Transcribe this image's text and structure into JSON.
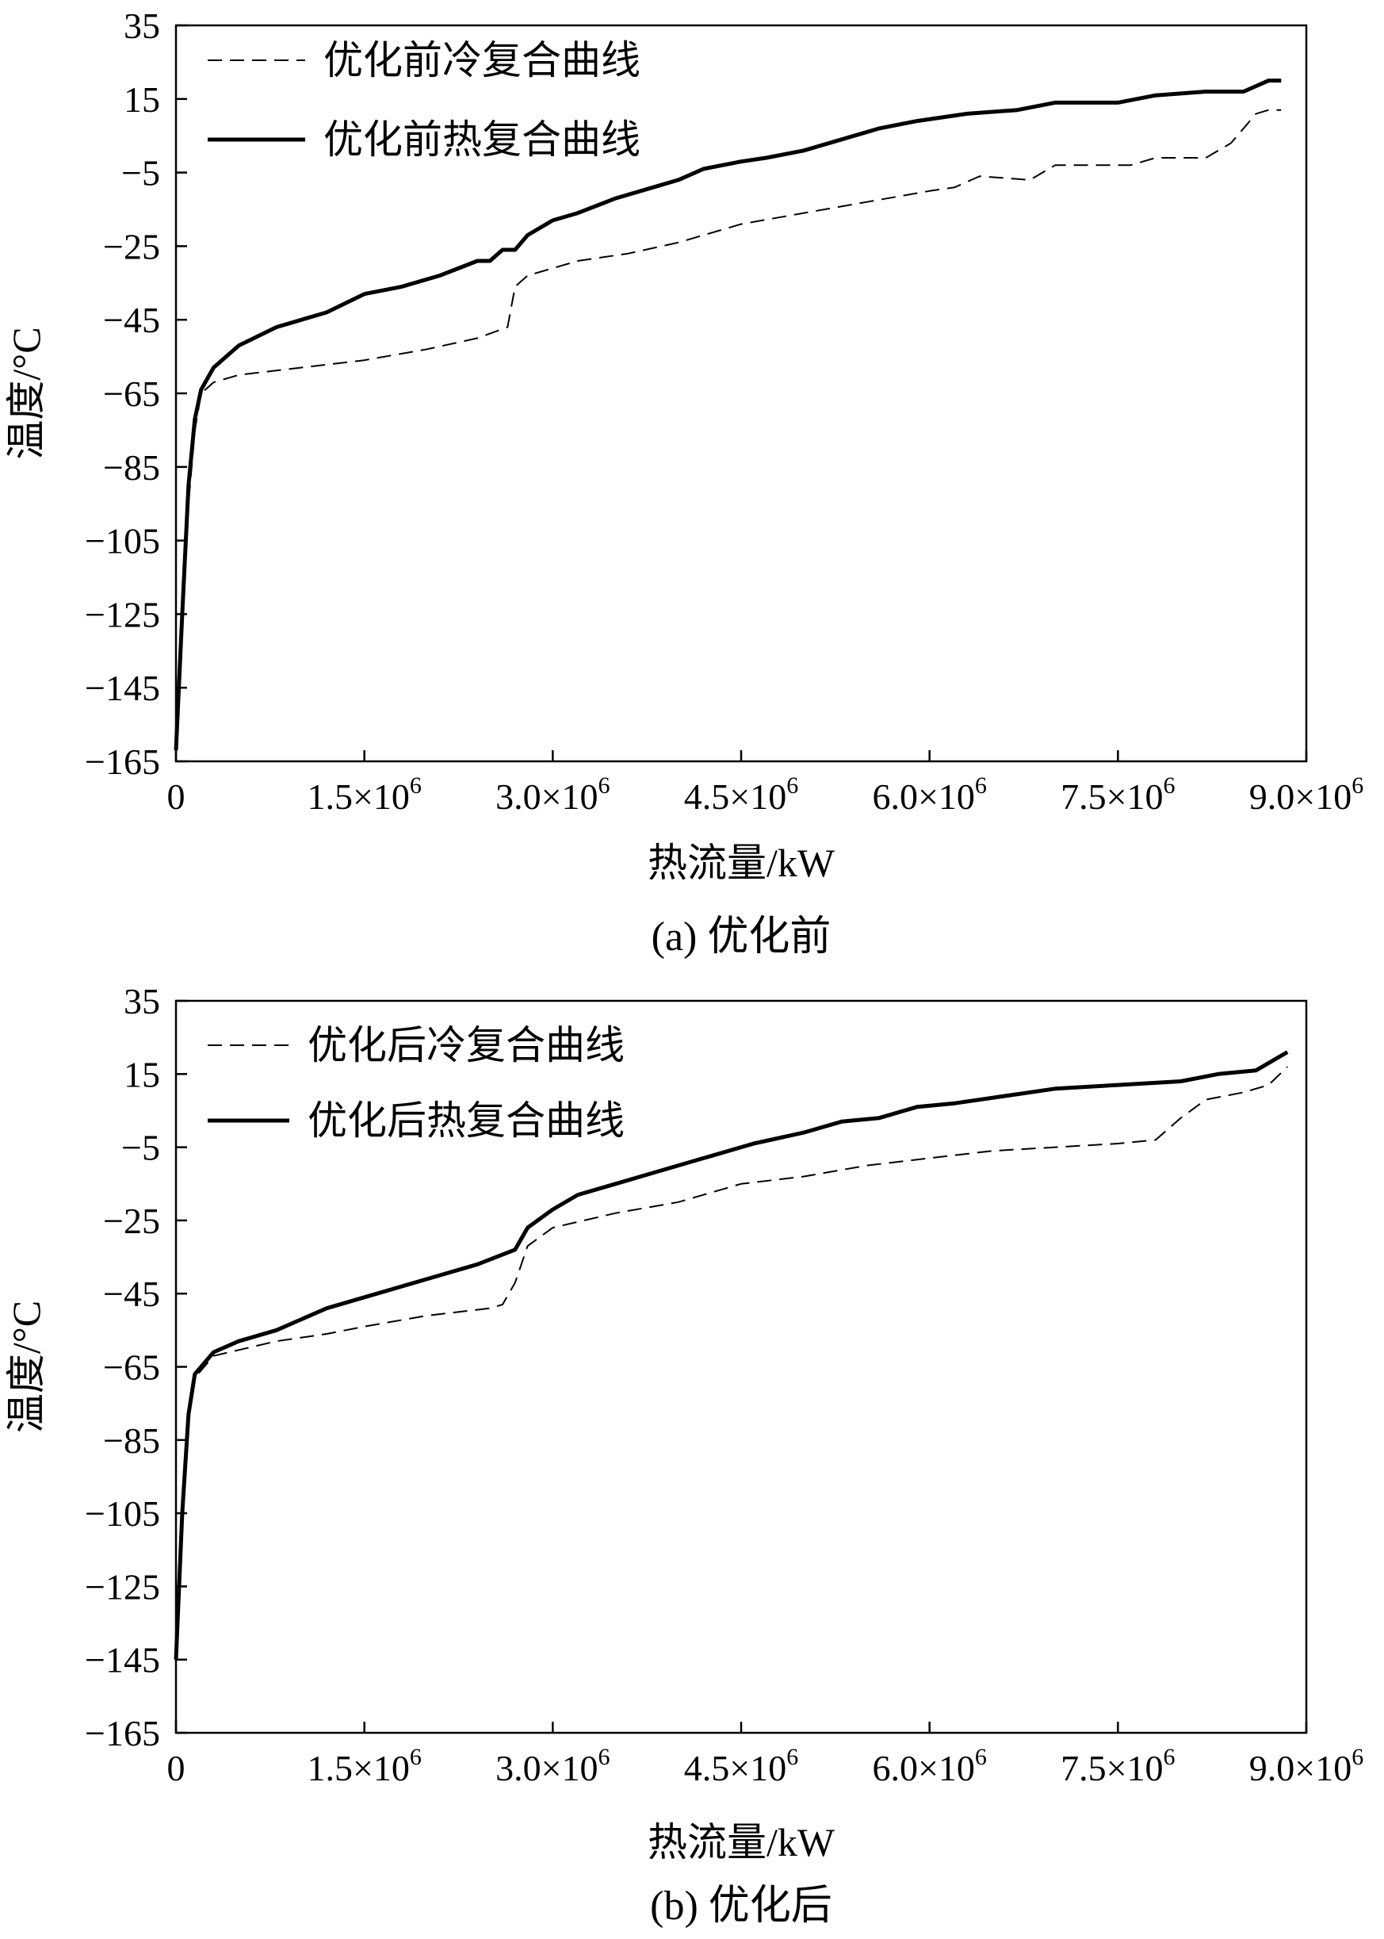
{
  "chart_data": [
    {
      "type": "line",
      "caption": "(a) 优化前",
      "xlabel": "热流量/kW",
      "ylabel": "温度/°C",
      "xlim": [
        0,
        9000000
      ],
      "ylim": [
        -165,
        35
      ],
      "xticks": [
        0,
        1500000,
        3000000,
        4500000,
        6000000,
        7500000,
        9000000
      ],
      "xtick_labels": [
        {
          "base": "0",
          "exp": ""
        },
        {
          "base": "1.5×10",
          "exp": "6"
        },
        {
          "base": "3.0×10",
          "exp": "6"
        },
        {
          "base": "4.5×10",
          "exp": "6"
        },
        {
          "base": "6.0×10",
          "exp": "6"
        },
        {
          "base": "7.5×10",
          "exp": "6"
        },
        {
          "base": "9.0×10",
          "exp": "6"
        }
      ],
      "yticks": [
        35,
        15,
        -5,
        -25,
        -45,
        -65,
        -85,
        -105,
        -125,
        -145,
        -165
      ],
      "ytick_labels": [
        "35",
        "15",
        "−5",
        "−25",
        "−45",
        "−65",
        "−85",
        "−105",
        "−125",
        "−145",
        "−165"
      ],
      "legend_position": "top-left",
      "series": [
        {
          "name": "优化前冷复合曲线",
          "style": "dashed",
          "color": "#000000",
          "points": [
            [
              0,
              -160
            ],
            [
              50000,
              -130
            ],
            [
              100000,
              -95
            ],
            [
              150000,
              -75
            ],
            [
              200000,
              -65
            ],
            [
              300000,
              -62
            ],
            [
              500000,
              -60
            ],
            [
              1000000,
              -58
            ],
            [
              1500000,
              -56
            ],
            [
              2000000,
              -53
            ],
            [
              2400000,
              -50
            ],
            [
              2640000,
              -47
            ],
            [
              2700000,
              -36
            ],
            [
              2800000,
              -33
            ],
            [
              3200000,
              -29
            ],
            [
              3600000,
              -27
            ],
            [
              4000000,
              -24
            ],
            [
              4500000,
              -19
            ],
            [
              5000000,
              -16
            ],
            [
              5500000,
              -13
            ],
            [
              6000000,
              -10
            ],
            [
              6200000,
              -9
            ],
            [
              6400000,
              -6
            ],
            [
              6800000,
              -7
            ],
            [
              7000000,
              -3
            ],
            [
              7300000,
              -3
            ],
            [
              7600000,
              -3
            ],
            [
              7800000,
              -1
            ],
            [
              8200000,
              -1
            ],
            [
              8400000,
              3
            ],
            [
              8600000,
              11
            ],
            [
              8700000,
              12
            ],
            [
              8800000,
              12
            ]
          ]
        },
        {
          "name": "优化前热复合曲线",
          "style": "solid",
          "color": "#000000",
          "points": [
            [
              0,
              -162
            ],
            [
              50000,
              -125
            ],
            [
              100000,
              -90
            ],
            [
              150000,
              -72
            ],
            [
              200000,
              -64
            ],
            [
              300000,
              -58
            ],
            [
              500000,
              -52
            ],
            [
              800000,
              -47
            ],
            [
              1200000,
              -43
            ],
            [
              1500000,
              -38
            ],
            [
              1800000,
              -36
            ],
            [
              2100000,
              -33
            ],
            [
              2400000,
              -29
            ],
            [
              2500000,
              -29
            ],
            [
              2600000,
              -26
            ],
            [
              2700000,
              -26
            ],
            [
              2800000,
              -22
            ],
            [
              3000000,
              -18
            ],
            [
              3200000,
              -16
            ],
            [
              3500000,
              -12
            ],
            [
              3800000,
              -9
            ],
            [
              4000000,
              -7
            ],
            [
              4200000,
              -4
            ],
            [
              4500000,
              -2
            ],
            [
              4700000,
              -1
            ],
            [
              5000000,
              1
            ],
            [
              5300000,
              4
            ],
            [
              5600000,
              7
            ],
            [
              5900000,
              9
            ],
            [
              6300000,
              11
            ],
            [
              6700000,
              12
            ],
            [
              7000000,
              14
            ],
            [
              7500000,
              14
            ],
            [
              7800000,
              16
            ],
            [
              8200000,
              17
            ],
            [
              8500000,
              17
            ],
            [
              8700000,
              20
            ],
            [
              8800000,
              20
            ]
          ]
        }
      ]
    },
    {
      "type": "line",
      "caption": "(b) 优化后",
      "xlabel": "热流量/kW",
      "ylabel": "温度/°C",
      "xlim": [
        0,
        9000000
      ],
      "ylim": [
        -165,
        35
      ],
      "xticks": [
        0,
        1500000,
        3000000,
        4500000,
        6000000,
        7500000,
        9000000
      ],
      "xtick_labels": [
        {
          "base": "0",
          "exp": ""
        },
        {
          "base": "1.5×10",
          "exp": "6"
        },
        {
          "base": "3.0×10",
          "exp": "6"
        },
        {
          "base": "4.5×10",
          "exp": "6"
        },
        {
          "base": "6.0×10",
          "exp": "6"
        },
        {
          "base": "7.5×10",
          "exp": "6"
        },
        {
          "base": "9.0×10",
          "exp": "6"
        }
      ],
      "yticks": [
        35,
        15,
        -5,
        -25,
        -45,
        -65,
        -85,
        -105,
        -125,
        -145,
        -165
      ],
      "ytick_labels": [
        "35",
        "15",
        "−5",
        "−25",
        "−45",
        "−65",
        "−85",
        "−105",
        "−125",
        "−145",
        "−165"
      ],
      "legend_position": "top-left",
      "series": [
        {
          "name": "优化后冷复合曲线",
          "style": "dashed",
          "color": "#000000",
          "points": [
            [
              0,
              -145
            ],
            [
              50000,
              -110
            ],
            [
              100000,
              -80
            ],
            [
              150000,
              -68
            ],
            [
              300000,
              -62
            ],
            [
              800000,
              -58
            ],
            [
              1200000,
              -56
            ],
            [
              1500000,
              -54
            ],
            [
              2000000,
              -51
            ],
            [
              2500000,
              -49
            ],
            [
              2600000,
              -48
            ],
            [
              2700000,
              -42
            ],
            [
              2800000,
              -32
            ],
            [
              3000000,
              -27
            ],
            [
              3500000,
              -23
            ],
            [
              4000000,
              -20
            ],
            [
              4500000,
              -15
            ],
            [
              5000000,
              -13
            ],
            [
              5500000,
              -10
            ],
            [
              6000000,
              -8
            ],
            [
              6500000,
              -6
            ],
            [
              7000000,
              -5
            ],
            [
              7500000,
              -4
            ],
            [
              7800000,
              -3
            ],
            [
              8000000,
              3
            ],
            [
              8200000,
              8
            ],
            [
              8500000,
              10
            ],
            [
              8700000,
              12
            ],
            [
              8850000,
              17
            ]
          ]
        },
        {
          "name": "优化后热复合曲线",
          "style": "solid",
          "color": "#000000",
          "points": [
            [
              0,
              -145
            ],
            [
              50000,
              -105
            ],
            [
              100000,
              -78
            ],
            [
              150000,
              -67
            ],
            [
              300000,
              -61
            ],
            [
              500000,
              -58
            ],
            [
              800000,
              -55
            ],
            [
              1200000,
              -49
            ],
            [
              1500000,
              -46
            ],
            [
              1800000,
              -43
            ],
            [
              2100000,
              -40
            ],
            [
              2400000,
              -37
            ],
            [
              2700000,
              -33
            ],
            [
              2800000,
              -27
            ],
            [
              3000000,
              -22
            ],
            [
              3200000,
              -18
            ],
            [
              3500000,
              -15
            ],
            [
              3800000,
              -12
            ],
            [
              4200000,
              -8
            ],
            [
              4600000,
              -4
            ],
            [
              5000000,
              -1
            ],
            [
              5300000,
              2
            ],
            [
              5600000,
              3
            ],
            [
              5900000,
              6
            ],
            [
              6200000,
              7
            ],
            [
              6600000,
              9
            ],
            [
              7000000,
              11
            ],
            [
              7500000,
              12
            ],
            [
              8000000,
              13
            ],
            [
              8300000,
              15
            ],
            [
              8600000,
              16
            ],
            [
              8800000,
              20
            ],
            [
              8850000,
              21
            ]
          ]
        }
      ]
    }
  ]
}
